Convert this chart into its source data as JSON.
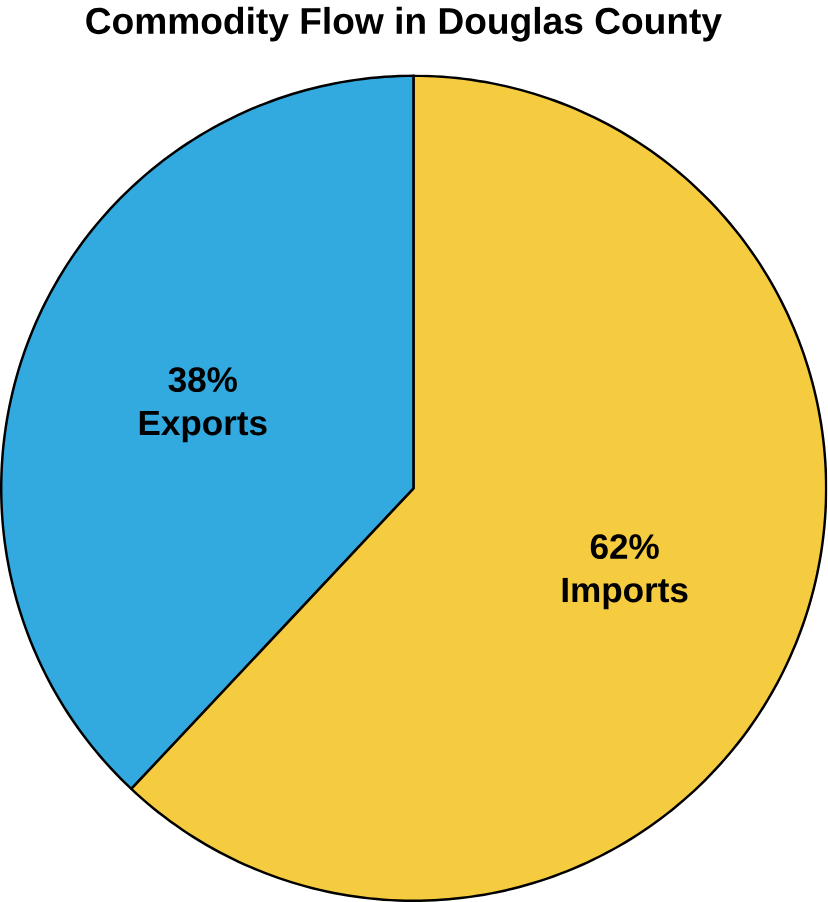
{
  "chart_data": {
    "type": "pie",
    "title": "Commodity Flow in Douglas County",
    "categories": [
      "Exports",
      "Imports"
    ],
    "values": [
      38,
      62
    ],
    "value_labels": [
      "38%",
      "62%"
    ],
    "colors": [
      "#33aadf",
      "#f5cb3f"
    ]
  }
}
